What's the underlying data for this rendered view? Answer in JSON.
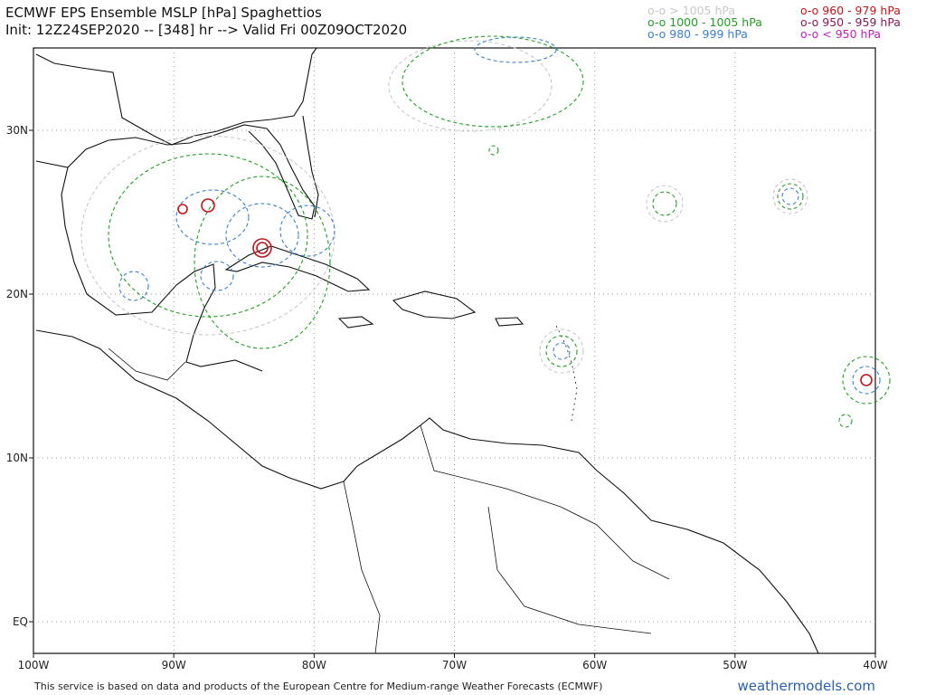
{
  "header": {
    "title": "ECMWF EPS Ensemble MSLP [hPa] Spaghettios",
    "init": "Init: 12Z24SEP2020 -- [348] hr --> Valid Fri 00Z09OCT2020"
  },
  "legend": [
    {
      "label": "o-o > 1005 hPa",
      "color": "#c8c8c8"
    },
    {
      "label": "o-o 1000 - 1005 hPa",
      "color": "#22a022"
    },
    {
      "label": "o-o 980 - 999 hPa",
      "color": "#3a7fd0"
    },
    {
      "label": "o-o 960 - 979 hPa",
      "color": "#c0161b"
    },
    {
      "label": "o-o 950 - 959 hPa",
      "color": "#8a1a5a"
    },
    {
      "label": "o-o < 950 hPa",
      "color": "#c020c0"
    }
  ],
  "axes": {
    "y_labels": [
      "30N",
      "20N",
      "10N",
      "EQ"
    ],
    "x_labels": [
      "100W",
      "90W",
      "80W",
      "70W",
      "60W",
      "50W",
      "40W"
    ]
  },
  "footer": {
    "credit": "This service is based on data and products of the European Centre for Medium-range Weather Forecasts (ECMWF)",
    "brand": "weathermodels.com"
  }
}
